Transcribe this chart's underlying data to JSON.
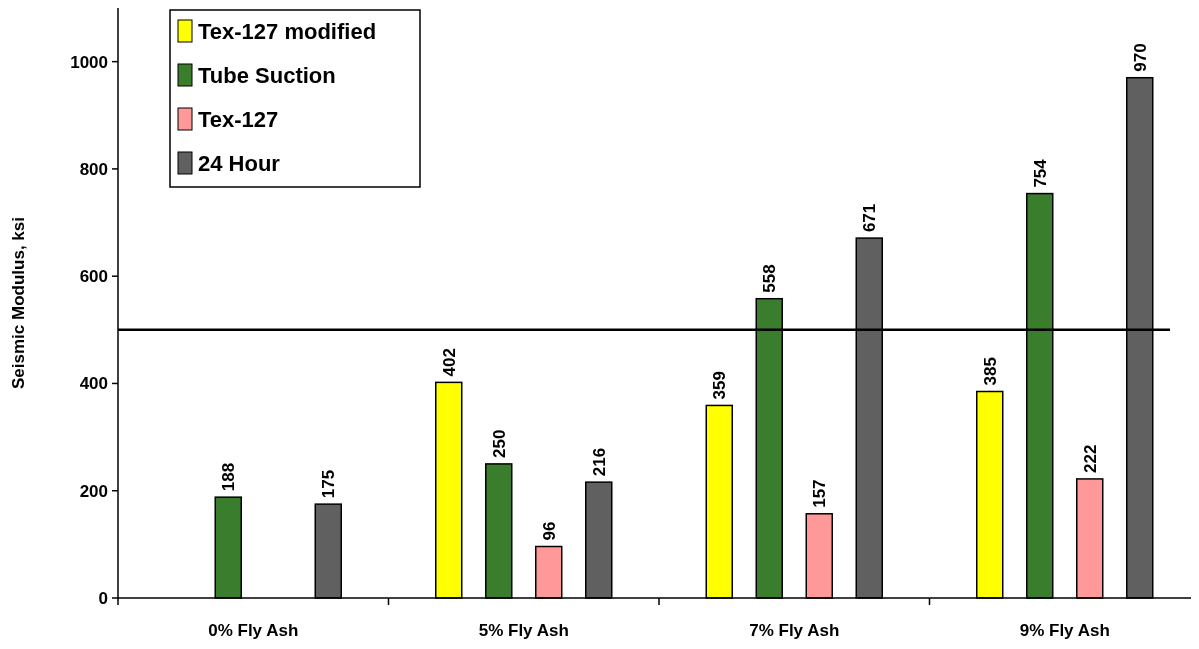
{
  "chart_data": {
    "type": "bar",
    "ylabel": "Seismic Modulus, ksi",
    "categories": [
      "0% Fly Ash",
      "5% Fly Ash",
      "7% Fly Ash",
      "9% Fly Ash"
    ],
    "series": [
      {
        "name": "Tex-127 modified",
        "color": "#ffff00",
        "values": [
          null,
          402,
          359,
          385
        ]
      },
      {
        "name": "Tube Suction",
        "color": "#3a7d2c",
        "values": [
          188,
          250,
          558,
          754
        ]
      },
      {
        "name": "Tex-127",
        "color": "#ff9999",
        "values": [
          null,
          96,
          157,
          222
        ]
      },
      {
        "name": "24 Hour",
        "color": "#606060",
        "values": [
          175,
          216,
          671,
          970
        ]
      }
    ],
    "ylim": [
      0,
      1100
    ],
    "yticks": [
      0,
      200,
      400,
      600,
      800,
      1000
    ],
    "grid": false,
    "legend": "top left",
    "data_labels": true,
    "ref_lines": [
      {
        "axis": "y",
        "value": 500,
        "color": "#000000"
      }
    ]
  }
}
